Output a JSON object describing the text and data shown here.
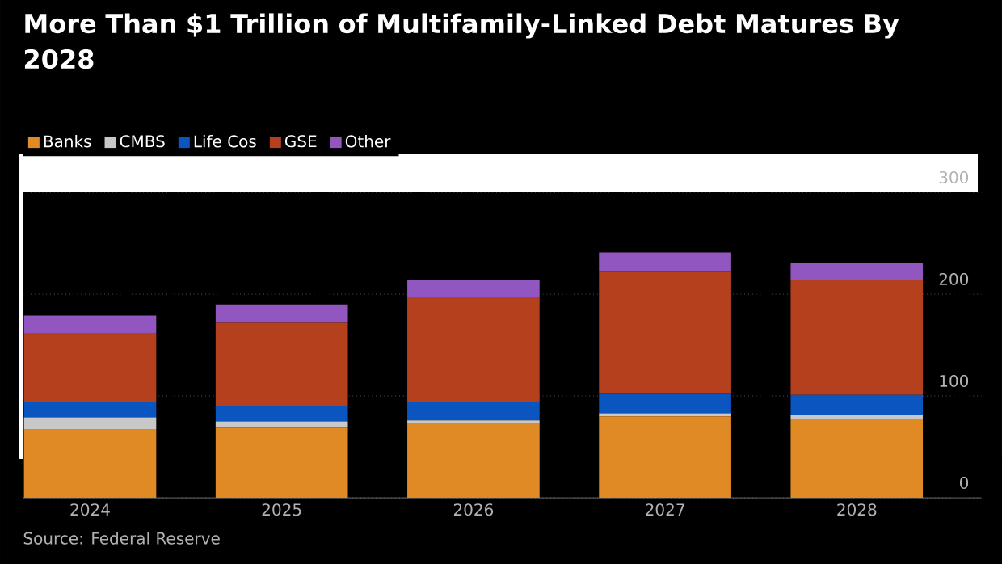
{
  "chart_data": {
    "type": "bar",
    "title": "More Than $1 Trillion of Multifamily-Linked Debt Matures By 2028",
    "categories": [
      "2024",
      "2025",
      "2026",
      "2027",
      "2028"
    ],
    "series": [
      {
        "name": "Banks",
        "color": "#e08a25",
        "values": [
          67,
          69,
          73,
          80,
          77
        ]
      },
      {
        "name": "CMBS",
        "color": "#c8c8c8",
        "values": [
          12,
          6,
          3,
          3,
          4
        ]
      },
      {
        "name": "Life Cos",
        "color": "#0a55c0",
        "values": [
          15,
          15,
          18,
          20,
          20
        ]
      },
      {
        "name": "GSE",
        "color": "#b5401e",
        "values": [
          68,
          82,
          103,
          119,
          113
        ]
      },
      {
        "name": "Other",
        "color": "#9156bf",
        "values": [
          17,
          18,
          17,
          19,
          17
        ]
      }
    ],
    "stacked": true,
    "ylim": [
      0,
      300
    ],
    "yticks": [
      0,
      100,
      200,
      300
    ],
    "grid": "y",
    "legend": "top left",
    "annotations": [
      "Source: Federal Reserve"
    ]
  }
}
